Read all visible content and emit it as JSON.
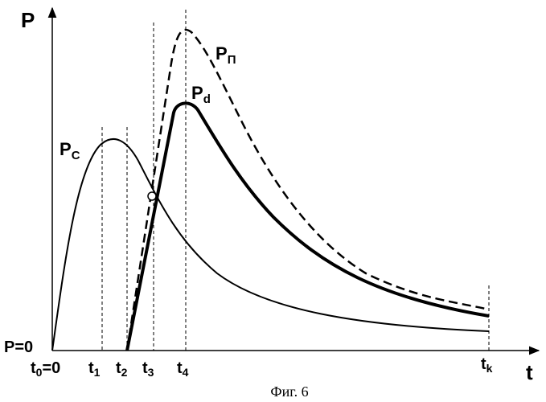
{
  "axes": {
    "y_label": "P",
    "x_label": "t",
    "origin_label": "P=0"
  },
  "time_marks": [
    {
      "id": "t0",
      "base": "t",
      "sub": "0",
      "suffix": "=0"
    },
    {
      "id": "t1",
      "base": "t",
      "sub": "1",
      "suffix": ""
    },
    {
      "id": "t2",
      "base": "t",
      "sub": "2",
      "suffix": ""
    },
    {
      "id": "t3",
      "base": "t",
      "sub": "3",
      "suffix": ""
    },
    {
      "id": "t4",
      "base": "t",
      "sub": "4",
      "suffix": ""
    },
    {
      "id": "tk",
      "base": "t",
      "sub": "k",
      "suffix": ""
    }
  ],
  "curves": [
    {
      "id": "Pc",
      "base": "P",
      "sub": "C",
      "style": "solid-thin"
    },
    {
      "id": "Pd",
      "base": "P",
      "sub": "d",
      "style": "solid-thick"
    },
    {
      "id": "Pp",
      "base": "P",
      "sub": "П",
      "style": "dashed"
    }
  ],
  "caption": "Фиг. 6",
  "colors": {
    "ink": "#000000",
    "background": "#ffffff"
  }
}
